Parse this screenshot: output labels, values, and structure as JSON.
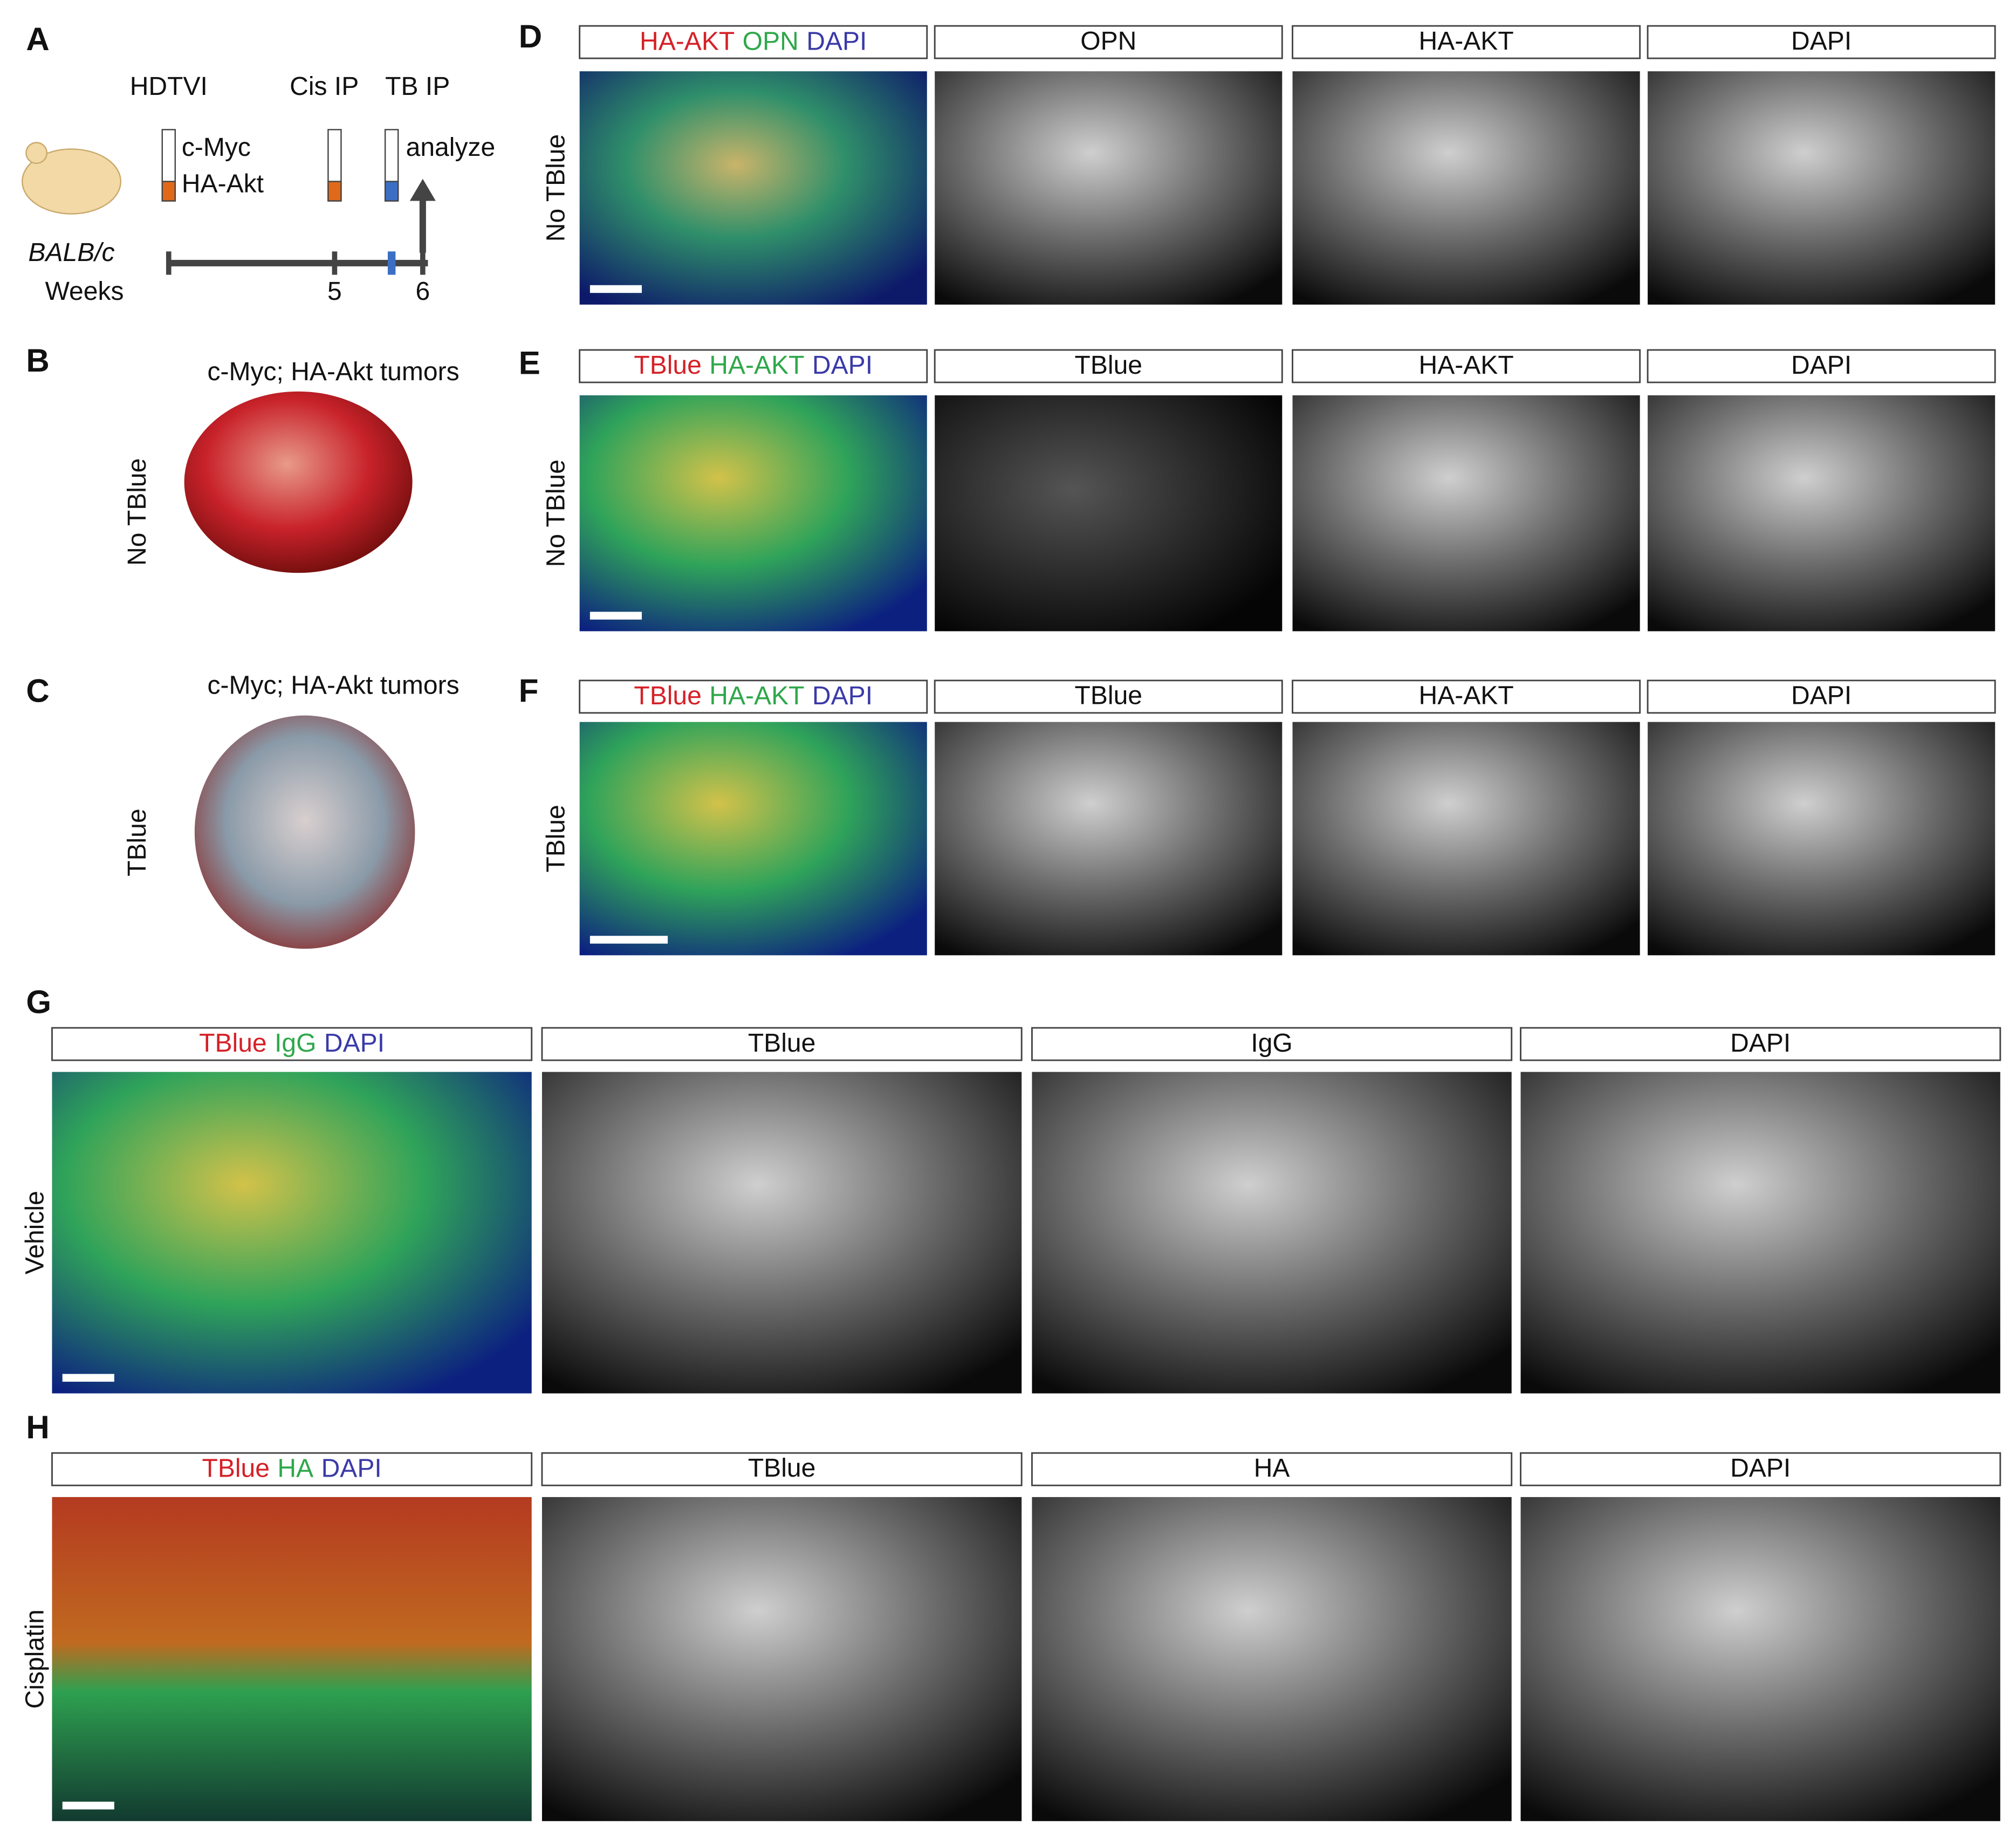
{
  "panel_a": {
    "letter": "A",
    "steps": [
      "HDTVI",
      "Cis IP",
      "TB IP"
    ],
    "plasmids": [
      "c-Myc",
      "HA-Akt"
    ],
    "analyze": "analyze",
    "strain": "BALB/c",
    "axis_label": "Weeks",
    "ticks": [
      5,
      6
    ]
  },
  "panel_b": {
    "letter": "B",
    "title": "c-Myc; HA-Akt tumors",
    "condition": "No TBlue"
  },
  "panel_c": {
    "letter": "C",
    "title": "c-Myc; HA-Akt tumors",
    "condition": "TBlue"
  },
  "image_rows": [
    {
      "letter": "D",
      "condition": "No TBlue",
      "merge": [
        {
          "text": "HA-AKT",
          "color": "#d62027"
        },
        {
          "text": "OPN",
          "color": "#2ea84a"
        },
        {
          "text": "DAPI",
          "color": "#3a3aa8"
        }
      ],
      "channels": [
        "OPN",
        "HA-AKT",
        "DAPI"
      ]
    },
    {
      "letter": "E",
      "condition": "No TBlue",
      "merge": [
        {
          "text": "TBlue",
          "color": "#d62027"
        },
        {
          "text": "HA-AKT",
          "color": "#2ea84a"
        },
        {
          "text": "DAPI",
          "color": "#3a3aa8"
        }
      ],
      "channels": [
        "TBlue",
        "HA-AKT",
        "DAPI"
      ]
    },
    {
      "letter": "F",
      "condition": "TBlue",
      "merge": [
        {
          "text": "TBlue",
          "color": "#d62027"
        },
        {
          "text": "HA-AKT",
          "color": "#2ea84a"
        },
        {
          "text": "DAPI",
          "color": "#3a3aa8"
        }
      ],
      "channels": [
        "TBlue",
        "HA-AKT",
        "DAPI"
      ]
    },
    {
      "letter": "G",
      "condition": "Vehicle",
      "merge": [
        {
          "text": "TBlue",
          "color": "#d62027"
        },
        {
          "text": "IgG",
          "color": "#2ea84a"
        },
        {
          "text": "DAPI",
          "color": "#3a3aa8"
        }
      ],
      "channels": [
        "TBlue",
        "IgG",
        "DAPI"
      ]
    },
    {
      "letter": "H",
      "condition": "Cisplatin",
      "merge": [
        {
          "text": "TBlue",
          "color": "#d62027"
        },
        {
          "text": "HA",
          "color": "#2ea84a"
        },
        {
          "text": "DAPI",
          "color": "#3a3aa8"
        }
      ],
      "channels": [
        "TBlue",
        "HA",
        "DAPI"
      ]
    }
  ]
}
